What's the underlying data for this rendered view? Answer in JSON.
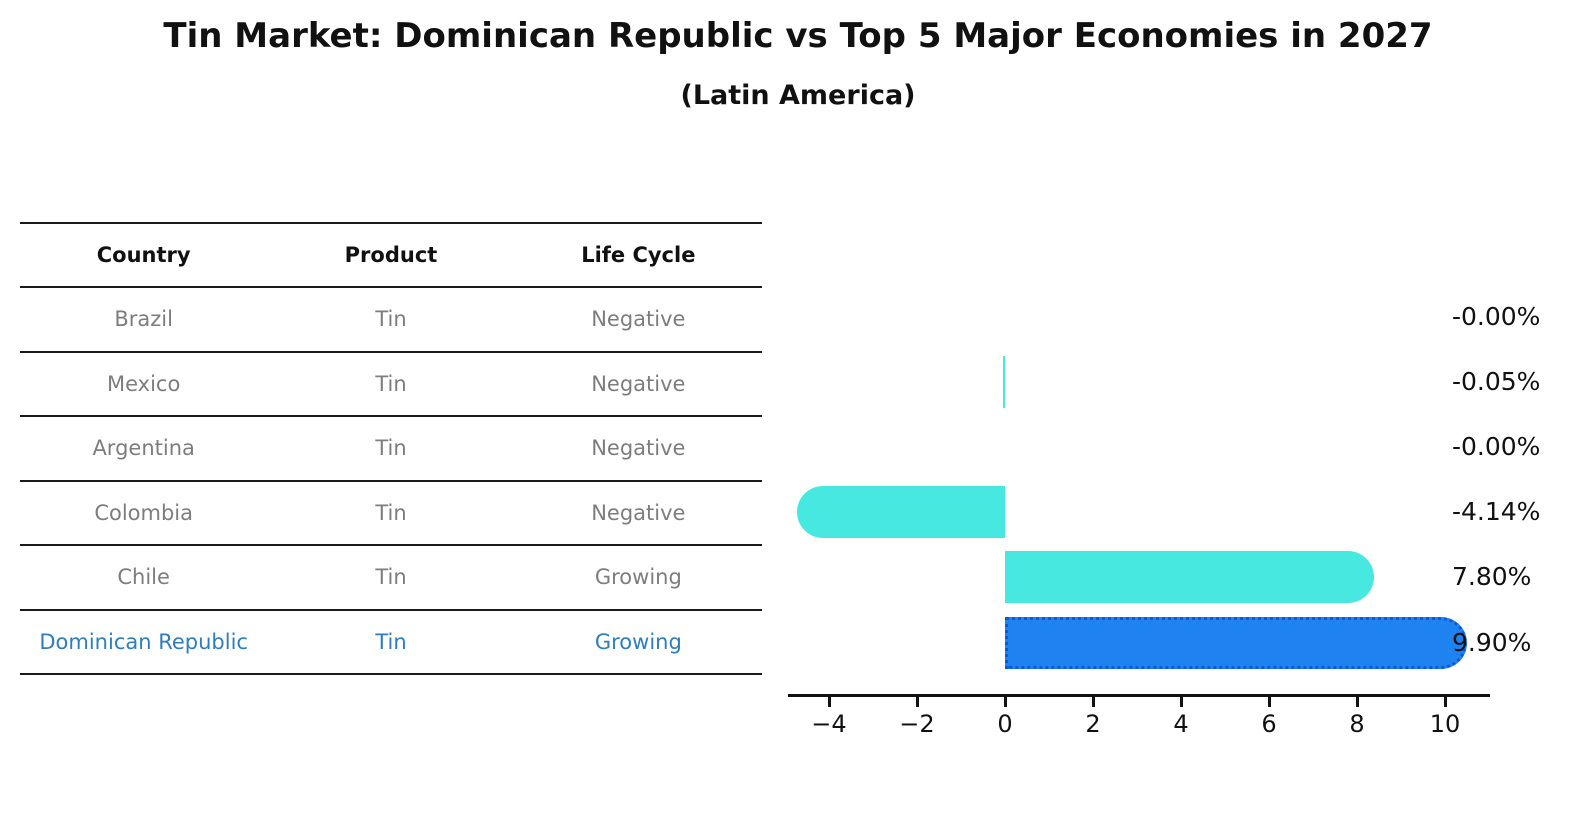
{
  "title": "Tin Market: Dominican Republic vs Top 5 Major Economies in 2027",
  "subtitle": "(Latin America)",
  "table": {
    "headers": [
      "Country",
      "Product",
      "Life Cycle"
    ],
    "rows": [
      {
        "country": "Brazil",
        "product": "Tin",
        "life_cycle": "Negative",
        "highlight": false
      },
      {
        "country": "Mexico",
        "product": "Tin",
        "life_cycle": "Negative",
        "highlight": false
      },
      {
        "country": "Argentina",
        "product": "Tin",
        "life_cycle": "Negative",
        "highlight": false
      },
      {
        "country": "Colombia",
        "product": "Tin",
        "life_cycle": "Negative",
        "highlight": false
      },
      {
        "country": "Chile",
        "product": "Tin",
        "life_cycle": "Growing",
        "highlight": false
      },
      {
        "country": "Dominican Republic",
        "product": "Tin",
        "life_cycle": "Growing",
        "highlight": true
      }
    ]
  },
  "chart_data": {
    "type": "bar",
    "orientation": "horizontal",
    "title": "Tin Market: Dominican Republic vs Top 5 Major Economies in 2027",
    "subtitle": "(Latin America)",
    "categories": [
      "Brazil",
      "Mexico",
      "Argentina",
      "Colombia",
      "Chile",
      "Dominican Republic"
    ],
    "values": [
      -0.0,
      -0.05,
      -0.0,
      -4.14,
      7.8,
      9.9
    ],
    "value_labels": [
      "-0.00%",
      "-0.05%",
      "-0.00%",
      "-4.14%",
      "7.80%",
      "9.90%"
    ],
    "unit": "%",
    "x_ticks": [
      -4,
      -2,
      0,
      2,
      4,
      6,
      8,
      10
    ],
    "x_tick_labels": [
      "−4",
      "−2",
      "0",
      "2",
      "4",
      "6",
      "8",
      "10"
    ],
    "xlim": [
      -4.9,
      11.0
    ],
    "grid": false,
    "legend": null,
    "colors": {
      "bar": "#46e8e0",
      "highlight_bar": "#1e82f0",
      "highlight_bar_border": "#0f5ad4",
      "highlight_text": "#2e7ebc",
      "row_text": "#7d7d7d",
      "header_text": "#111111",
      "axis": "#111111"
    }
  }
}
